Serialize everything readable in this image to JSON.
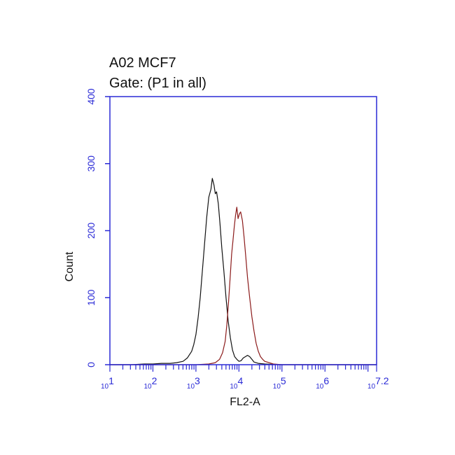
{
  "chart_data": {
    "type": "line",
    "title": "A02 MCF7",
    "subtitle": "Gate: (P1 in all)",
    "xlabel": "FL2-A",
    "ylabel": "Count",
    "x_scale": "log",
    "xlim": [
      1,
      7.2
    ],
    "ylim": [
      0,
      400
    ],
    "grid": false,
    "y_ticks": [
      "0",
      "100",
      "200",
      "300",
      "400"
    ],
    "x_ticks": [
      {
        "base": "10",
        "exp": "1"
      },
      {
        "base": "10",
        "exp": "2"
      },
      {
        "base": "10",
        "exp": "3"
      },
      {
        "base": "10",
        "exp": "4"
      },
      {
        "base": "10",
        "exp": "5"
      },
      {
        "base": "10",
        "exp": "6"
      },
      {
        "base": "10",
        "exp": "7.2"
      }
    ],
    "series": [
      {
        "color": "#111111",
        "points": [
          [
            1.0,
            0
          ],
          [
            1.5,
            0
          ],
          [
            1.8,
            1
          ],
          [
            2.0,
            1
          ],
          [
            2.2,
            2
          ],
          [
            2.4,
            2
          ],
          [
            2.55,
            3
          ],
          [
            2.7,
            5
          ],
          [
            2.8,
            10
          ],
          [
            2.9,
            20
          ],
          [
            2.95,
            30
          ],
          [
            3.0,
            45
          ],
          [
            3.05,
            70
          ],
          [
            3.1,
            100
          ],
          [
            3.15,
            140
          ],
          [
            3.2,
            180
          ],
          [
            3.25,
            220
          ],
          [
            3.3,
            250
          ],
          [
            3.35,
            262
          ],
          [
            3.38,
            278
          ],
          [
            3.42,
            268
          ],
          [
            3.45,
            255
          ],
          [
            3.48,
            258
          ],
          [
            3.52,
            240
          ],
          [
            3.56,
            210
          ],
          [
            3.6,
            175
          ],
          [
            3.65,
            140
          ],
          [
            3.7,
            100
          ],
          [
            3.75,
            65
          ],
          [
            3.8,
            40
          ],
          [
            3.85,
            22
          ],
          [
            3.9,
            12
          ],
          [
            3.95,
            8
          ],
          [
            4.0,
            5
          ],
          [
            4.05,
            6
          ],
          [
            4.1,
            10
          ],
          [
            4.15,
            12
          ],
          [
            4.2,
            14
          ],
          [
            4.25,
            12
          ],
          [
            4.3,
            8
          ],
          [
            4.35,
            4
          ],
          [
            4.45,
            2
          ],
          [
            4.6,
            1
          ],
          [
            5.0,
            0
          ],
          [
            7.2,
            0
          ]
        ]
      },
      {
        "color": "#8b1a1a",
        "points": [
          [
            1.0,
            0
          ],
          [
            3.0,
            0
          ],
          [
            3.3,
            1
          ],
          [
            3.45,
            3
          ],
          [
            3.55,
            8
          ],
          [
            3.62,
            18
          ],
          [
            3.68,
            35
          ],
          [
            3.72,
            60
          ],
          [
            3.76,
            95
          ],
          [
            3.8,
            135
          ],
          [
            3.83,
            165
          ],
          [
            3.86,
            185
          ],
          [
            3.89,
            205
          ],
          [
            3.92,
            222
          ],
          [
            3.95,
            235
          ],
          [
            3.98,
            218
          ],
          [
            4.01,
            225
          ],
          [
            4.04,
            228
          ],
          [
            4.08,
            215
          ],
          [
            4.12,
            190
          ],
          [
            4.16,
            160
          ],
          [
            4.2,
            130
          ],
          [
            4.25,
            100
          ],
          [
            4.3,
            72
          ],
          [
            4.35,
            50
          ],
          [
            4.4,
            32
          ],
          [
            4.45,
            20
          ],
          [
            4.5,
            12
          ],
          [
            4.55,
            8
          ],
          [
            4.6,
            5
          ],
          [
            4.7,
            3
          ],
          [
            4.8,
            1
          ],
          [
            5.0,
            0
          ],
          [
            7.2,
            0
          ]
        ]
      }
    ]
  }
}
